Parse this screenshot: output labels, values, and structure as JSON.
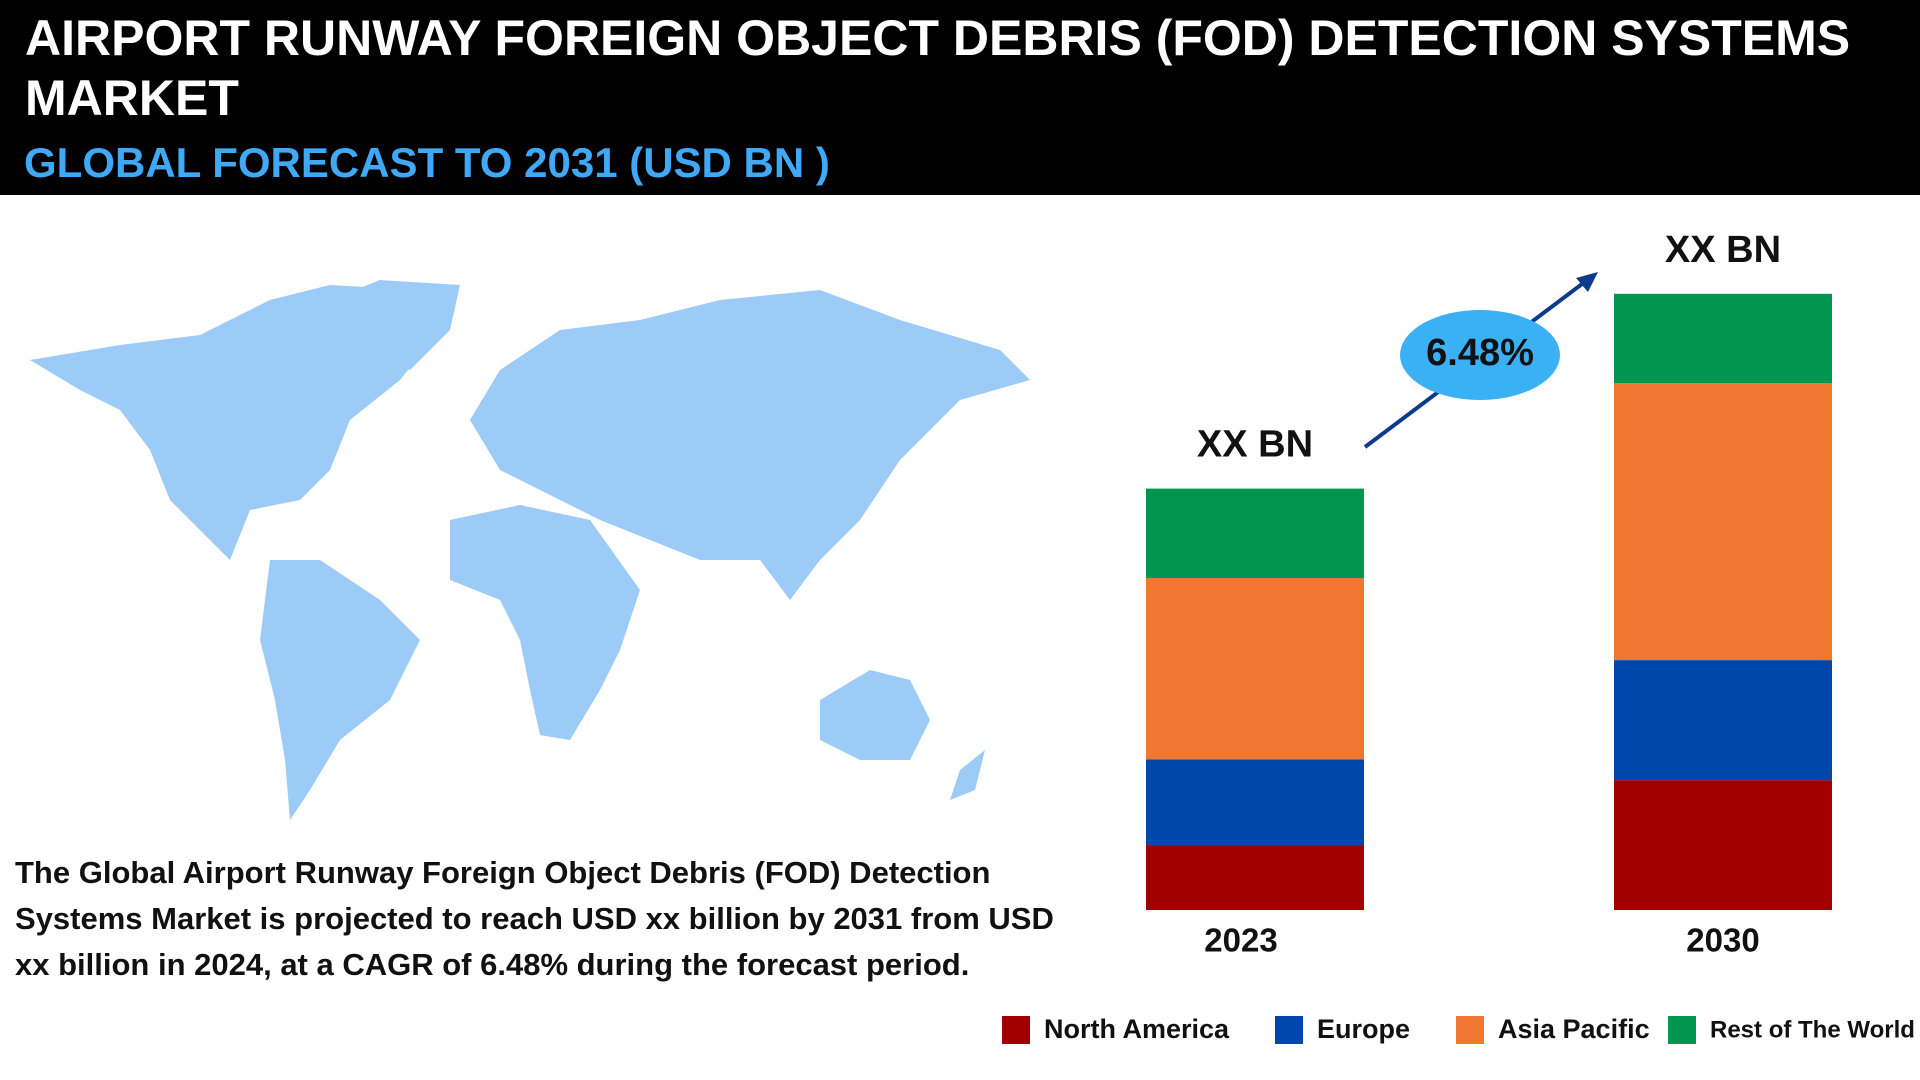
{
  "chart_data": {
    "type": "stacked-bar",
    "title": "AIRPORT RUNWAY FOREIGN OBJECT DEBRIS (FOD) DETECTION SYSTEMS MARKET",
    "subtitle": "GLOBAL FORECAST TO 2031 (USD BN )",
    "categories": [
      "2023",
      "2030"
    ],
    "total_labels": [
      "XX BN",
      "XX BN"
    ],
    "series": [
      {
        "name": "North America",
        "color": "#a00000",
        "values": [
          53,
          106
        ]
      },
      {
        "name": "Europe",
        "color": "#0047ab",
        "values": [
          70,
          98
        ]
      },
      {
        "name": "Asia Pacific",
        "color": "#ef7730",
        "values": [
          148,
          226
        ]
      },
      {
        "name": "Rest of The World",
        "color": "#009650",
        "values": [
          73,
          73
        ]
      }
    ],
    "ylim": [
      0,
      520
    ],
    "cagr_label": "6.48%",
    "description": "The Global  Airport Runway Foreign Object Debris (FOD) Detection Systems Market is projected to reach USD xx billion by 2031 from USD xx billion in 2024, at a CAGR of 6.48% during the forecast period.",
    "legend": "bottom-right"
  }
}
